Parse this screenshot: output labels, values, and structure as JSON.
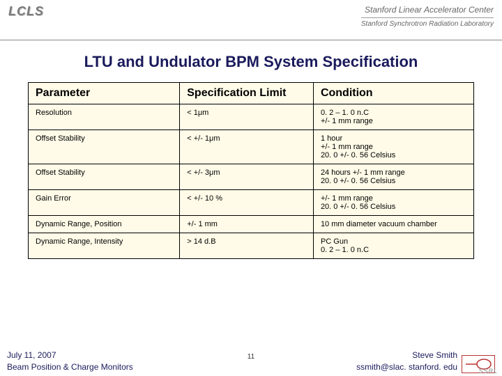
{
  "header": {
    "logo_text": "LCLS",
    "institution_line1": "Stanford Linear Accelerator Center",
    "institution_line2": "Stanford Synchrotron Radiation Laboratory"
  },
  "title": "LTU and Undulator BPM System Specification",
  "table": {
    "columns": [
      "Parameter",
      "Specification Limit",
      "Condition"
    ],
    "rows": [
      [
        "Resolution",
        "<  1μm",
        "0. 2 – 1. 0 n.C\n+/- 1 mm range"
      ],
      [
        "Offset Stability",
        "< +/- 1μm",
        "1 hour\n+/- 1 mm range\n20. 0 +/- 0. 56 Celsius"
      ],
      [
        "Offset Stability",
        "< +/- 3μm",
        "24 hours +/- 1 mm range\n20. 0 +/- 0. 56 Celsius"
      ],
      [
        "Gain Error",
        "< +/- 10 %",
        "+/- 1 mm range\n20. 0 +/- 0. 56 Celsius"
      ],
      [
        "Dynamic Range, Position",
        "+/- 1 mm",
        "10 mm diameter vacuum chamber"
      ],
      [
        "Dynamic Range, Intensity",
        "> 14 d.B",
        "PC Gun\n0. 2 – 1. 0 n.C"
      ]
    ]
  },
  "footer": {
    "date": "July 11, 2007",
    "subtitle": "Beam Position & Charge Monitors",
    "page_number": "11",
    "author": "Steve Smith",
    "email": "ssmith@slac. stanford. edu",
    "ssrl_tag": "SSRL"
  }
}
